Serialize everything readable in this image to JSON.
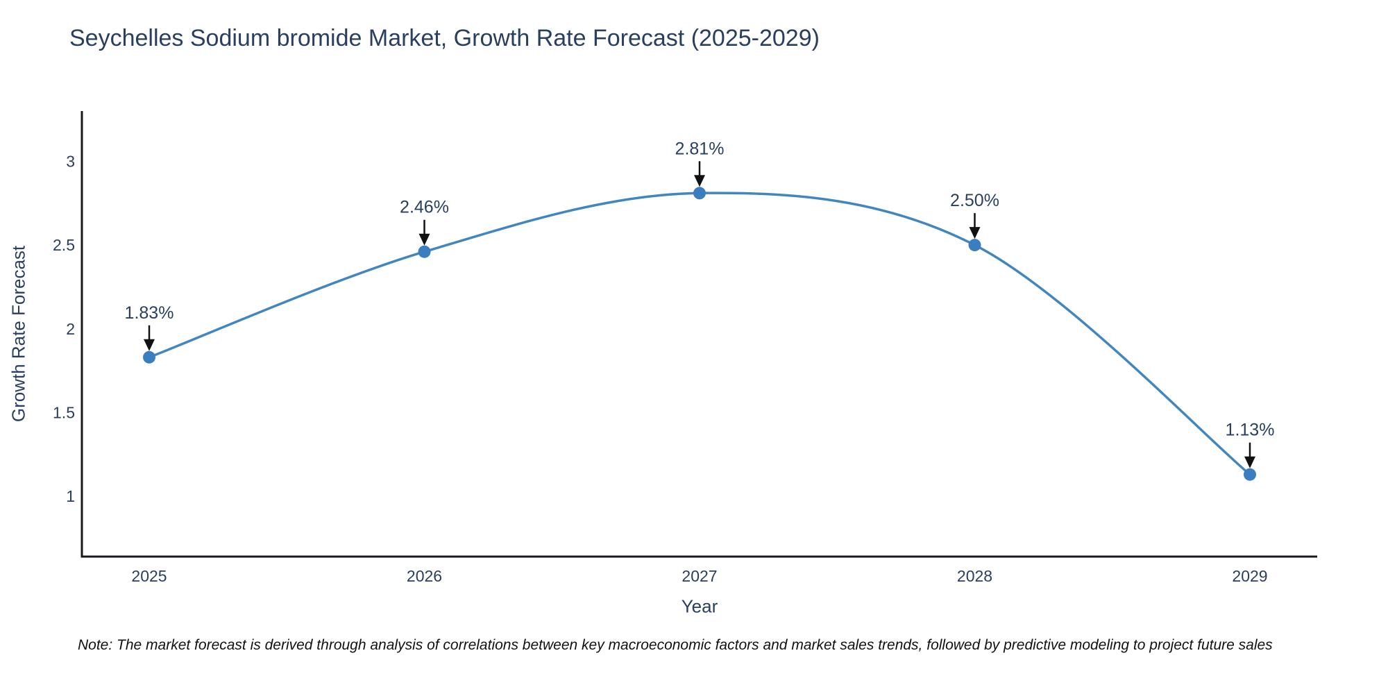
{
  "chart_data": {
    "type": "line",
    "title": "Seychelles Sodium bromide Market, Growth Rate Forecast (2025-2029)",
    "xlabel": "Year",
    "ylabel": "Growth Rate Forecast",
    "categories": [
      "2025",
      "2026",
      "2027",
      "2028",
      "2029"
    ],
    "series": [
      {
        "name": "Growth Rate Forecast",
        "values": [
          1.83,
          2.46,
          2.81,
          2.5,
          1.13
        ],
        "point_labels": [
          "1.83%",
          "2.46%",
          "2.81%",
          "2.50%",
          "1.13%"
        ]
      }
    ],
    "line_shape": "spline",
    "yticks": [
      1,
      1.5,
      2,
      2.5,
      3
    ],
    "ytick_labels": [
      "1",
      "1.5",
      "2",
      "2.5",
      "3"
    ],
    "ylim": [
      0.64,
      3.3
    ],
    "grid": false,
    "legend_position": "none",
    "colors": {
      "line": "#4186be",
      "marker": "#3a7ebf",
      "axis": "#16181d",
      "text": "#2a3f5f",
      "annotation_arrow": "#111111"
    },
    "note": "Note: The market forecast is derived through analysis of correlations between key macroeconomic factors and market sales trends, followed by predictive modeling to project future sales"
  }
}
